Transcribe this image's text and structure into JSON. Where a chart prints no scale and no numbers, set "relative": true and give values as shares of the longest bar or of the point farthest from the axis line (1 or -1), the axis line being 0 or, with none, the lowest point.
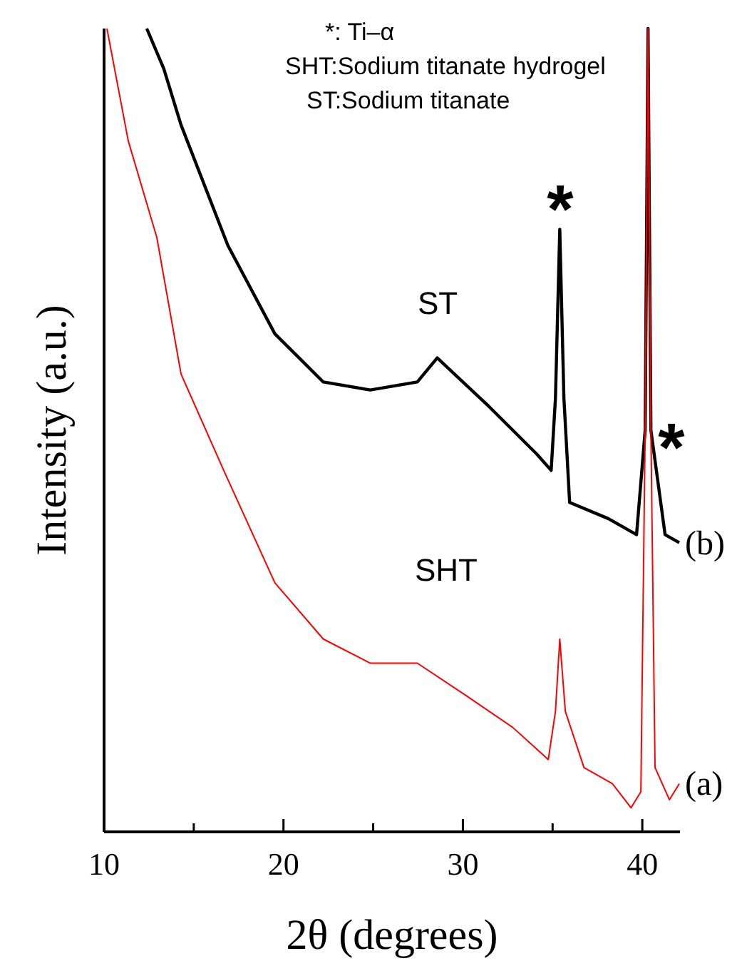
{
  "chart_data": {
    "type": "line",
    "relative": true,
    "xlabel": "2θ (degrees)",
    "ylabel": "Intensity (a.u.)",
    "xlim": [
      10,
      42.1
    ],
    "xticks": [
      10,
      {
        "value": 15,
        "label": null
      },
      20,
      {
        "value": 25,
        "label": null
      },
      30,
      {
        "value": 35,
        "label": null
      },
      40
    ],
    "grid": false,
    "marker": "none",
    "line_style": "solid",
    "annotations": [
      "*: Ti–α",
      "SHT:Sodium titanate hydrogel",
      "ST:Sodium titanate",
      "ST",
      "SHT",
      "*",
      "*"
    ],
    "series": [
      {
        "name": "(b)",
        "color": "#000000",
        "x": [
          12.38,
          13.33,
          14.29,
          16.9,
          19.52,
          22.22,
          24.84,
          27.46,
          28.57,
          31.43,
          34.13,
          34.92,
          35.16,
          35.4,
          35.63,
          35.95,
          38.1,
          39.68,
          40.16,
          40.32,
          40.48,
          41.27,
          42.06
        ],
        "values": [
          1.0,
          0.95,
          0.88,
          0.73,
          0.62,
          0.56,
          0.55,
          0.56,
          0.59,
          0.53,
          0.47,
          0.45,
          0.54,
          0.75,
          0.54,
          0.41,
          0.39,
          0.37,
          0.5,
          1.0,
          0.5,
          0.37,
          0.36
        ]
      },
      {
        "name": "(a)",
        "color": "#ff0000",
        "x": [
          10.16,
          11.35,
          12.94,
          14.29,
          16.67,
          19.52,
          22.22,
          24.84,
          27.46,
          30.16,
          32.78,
          34.76,
          35.16,
          35.4,
          35.71,
          36.75,
          38.33,
          39.37,
          39.92,
          40.16,
          40.32,
          40.48,
          40.71,
          41.51,
          42.06
        ],
        "values": [
          1.0,
          0.86,
          0.74,
          0.57,
          0.45,
          0.31,
          0.24,
          0.21,
          0.21,
          0.17,
          0.13,
          0.09,
          0.15,
          0.24,
          0.15,
          0.08,
          0.06,
          0.03,
          0.05,
          0.5,
          1.0,
          0.5,
          0.08,
          0.04,
          0.06
        ]
      }
    ]
  }
}
